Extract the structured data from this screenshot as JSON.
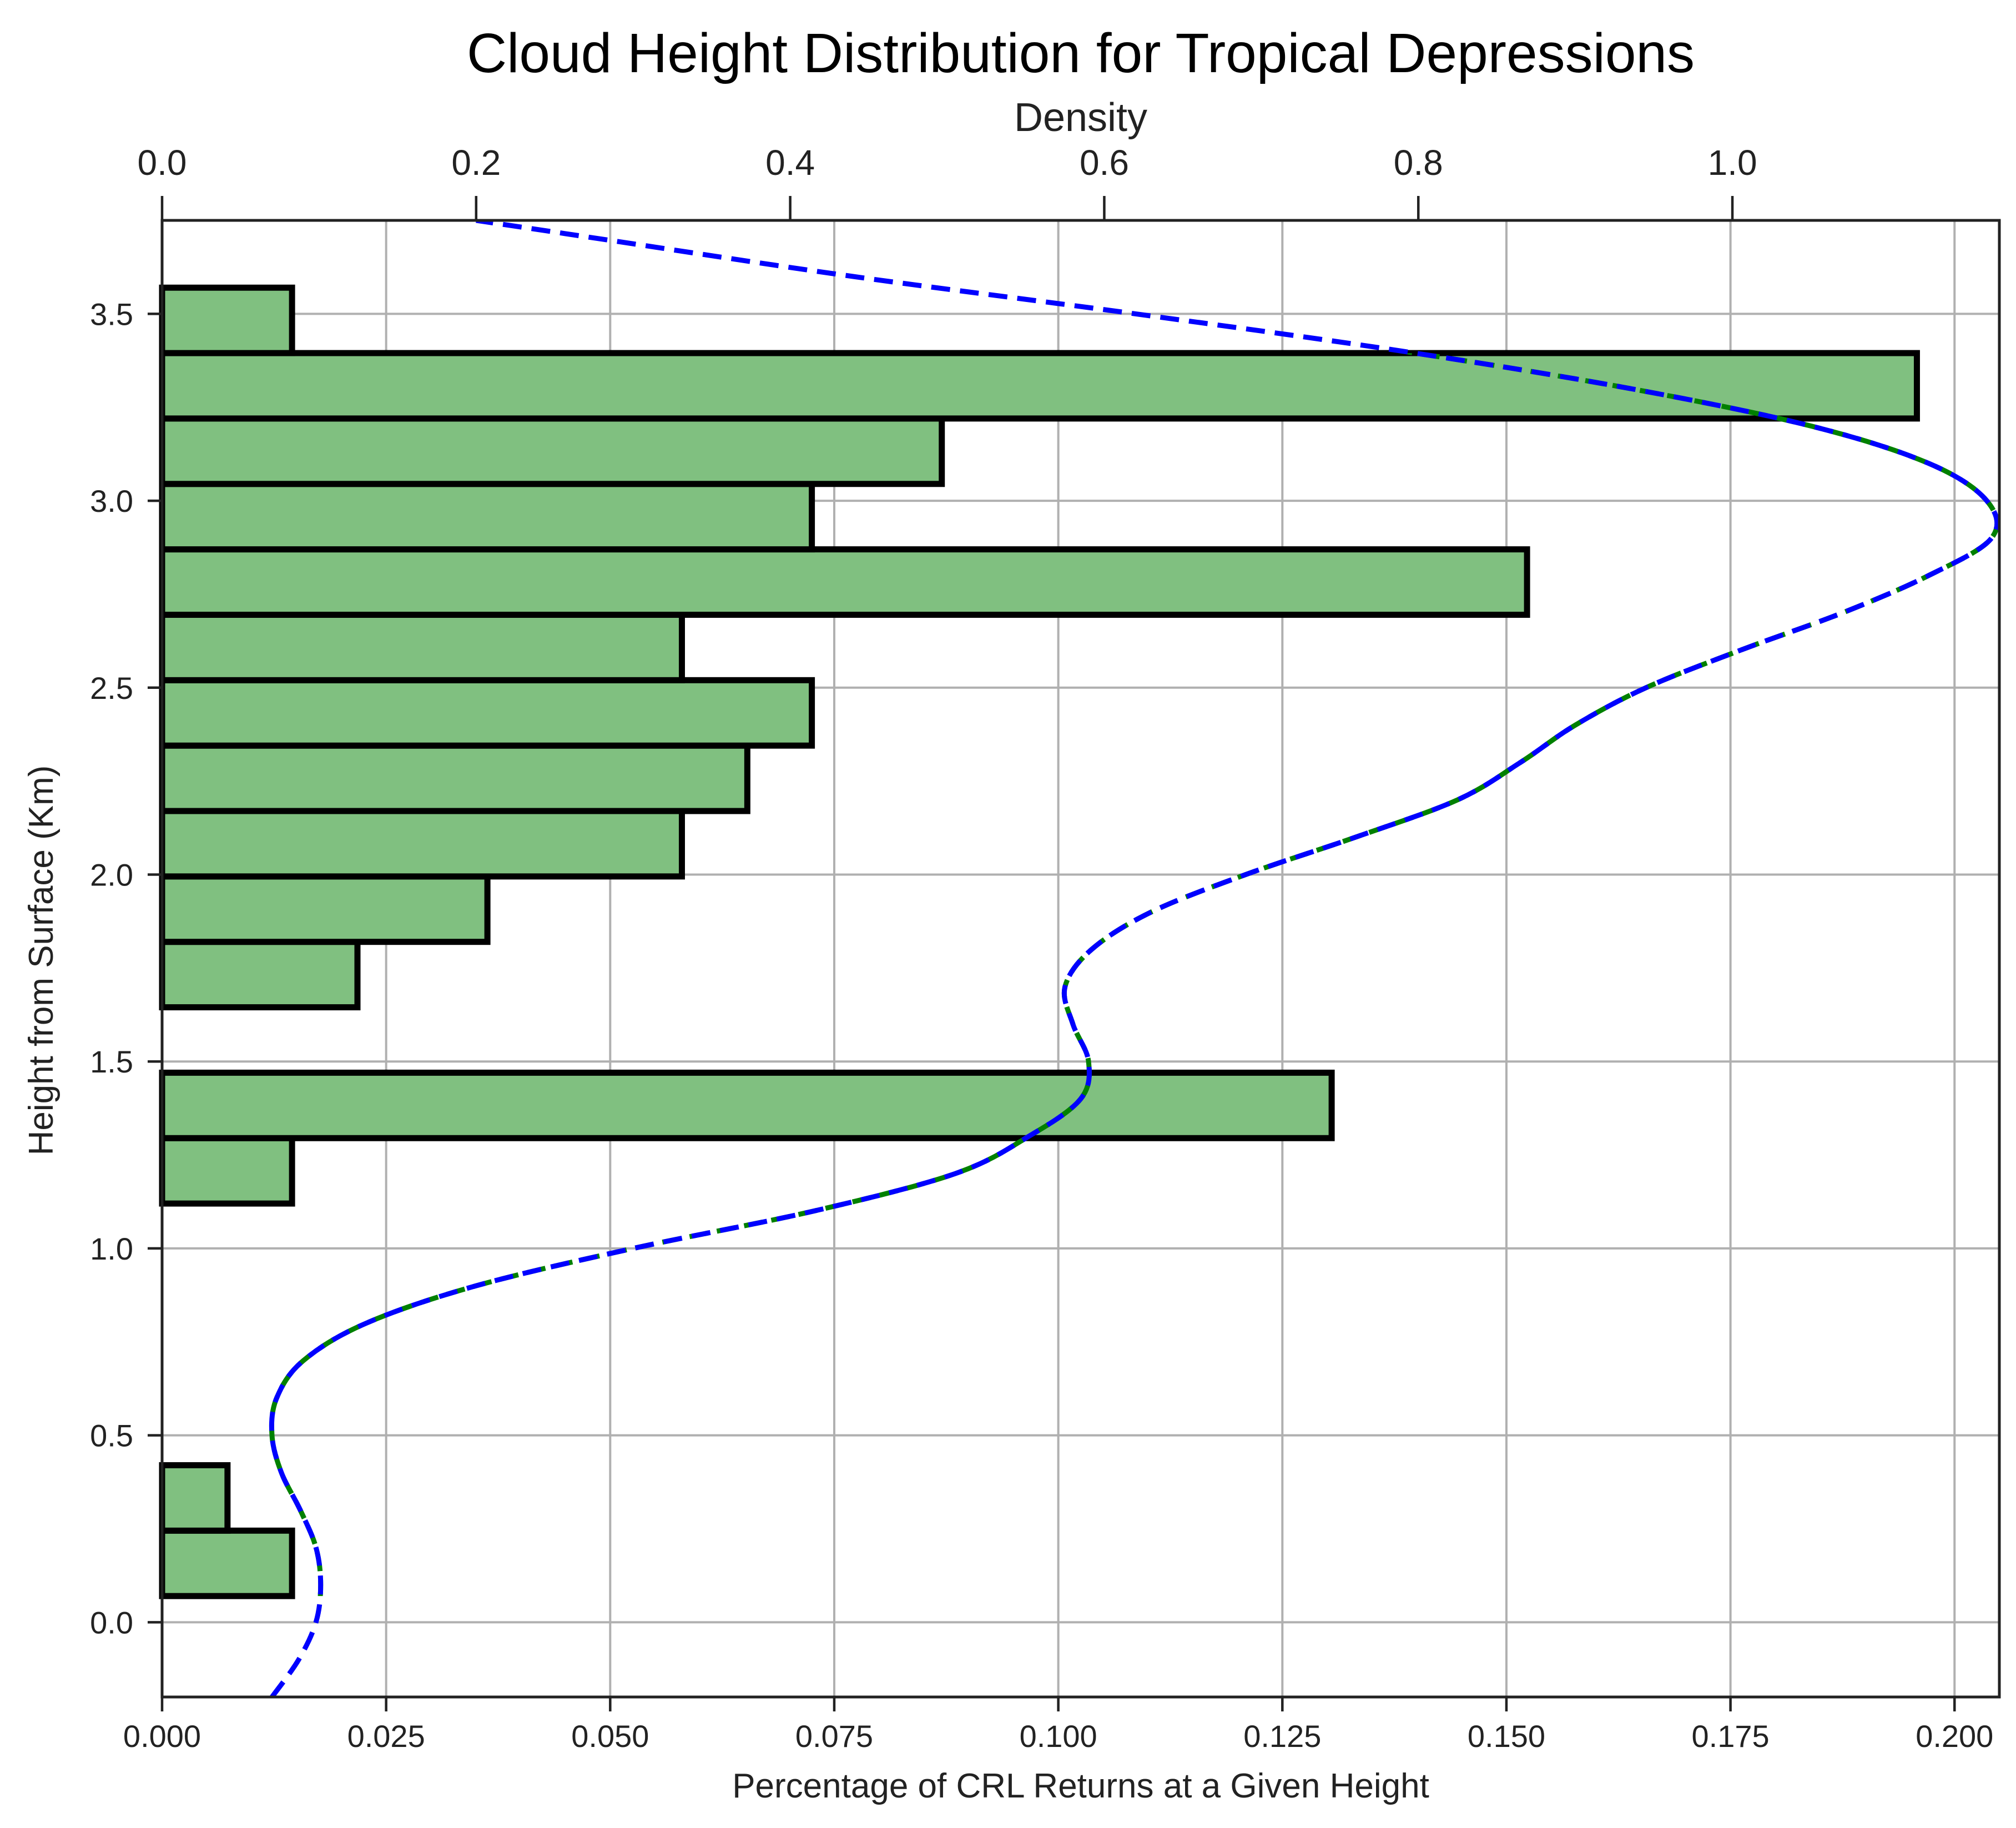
{
  "chart_data": {
    "type": "bar",
    "orientation": "horizontal",
    "title": "Cloud Height Distribution for Tropical Depressions",
    "xlabel": "Percentage of CRL Returns at a Given Height",
    "ylabel": "Height from Surface (Km)",
    "x2label": "Density",
    "xlim": [
      0,
      0.205
    ],
    "ylim": [
      -0.2,
      3.75
    ],
    "x2lim": [
      0,
      1.17
    ],
    "grid": true,
    "bar_color": "#80c080",
    "bar_edge_color": "#000000",
    "kde_color": "#0000ff",
    "kde_under_color": "#008000",
    "x_ticks": [
      "0.000",
      "0.025",
      "0.050",
      "0.075",
      "0.100",
      "0.125",
      "0.150",
      "0.175",
      "0.200"
    ],
    "x_tick_values": [
      0,
      0.025,
      0.05,
      0.075,
      0.1,
      0.125,
      0.15,
      0.175,
      0.2
    ],
    "y_ticks": [
      "0.0",
      "0.5",
      "1.0",
      "1.5",
      "2.0",
      "2.5",
      "3.0",
      "3.5"
    ],
    "y_tick_values": [
      0,
      0.5,
      1.0,
      1.5,
      2.0,
      2.5,
      3.0,
      3.5
    ],
    "x2_ticks": [
      "0.0",
      "0.2",
      "0.4",
      "0.6",
      "0.8",
      "1.0"
    ],
    "x2_tick_values": [
      0,
      0.2,
      0.4,
      0.6,
      0.8,
      1.0
    ],
    "bars": [
      {
        "y0": 0.07,
        "y1": 0.245,
        "value": 0.0145
      },
      {
        "y0": 0.245,
        "y1": 0.42,
        "value": 0.0073
      },
      {
        "y0": 1.12,
        "y1": 1.295,
        "value": 0.0145
      },
      {
        "y0": 1.295,
        "y1": 1.47,
        "value": 0.1305
      },
      {
        "y0": 1.645,
        "y1": 1.82,
        "value": 0.0218
      },
      {
        "y0": 1.82,
        "y1": 1.995,
        "value": 0.0363
      },
      {
        "y0": 1.995,
        "y1": 2.17,
        "value": 0.058
      },
      {
        "y0": 2.17,
        "y1": 2.345,
        "value": 0.0653
      },
      {
        "y0": 2.345,
        "y1": 2.52,
        "value": 0.0725
      },
      {
        "y0": 2.52,
        "y1": 2.695,
        "value": 0.058
      },
      {
        "y0": 2.695,
        "y1": 2.87,
        "value": 0.1523
      },
      {
        "y0": 2.87,
        "y1": 3.045,
        "value": 0.0725
      },
      {
        "y0": 3.045,
        "y1": 3.22,
        "value": 0.087
      },
      {
        "y0": 3.22,
        "y1": 3.395,
        "value": 0.1958
      },
      {
        "y0": 3.395,
        "y1": 3.57,
        "value": 0.0145
      }
    ],
    "kde_density": {
      "y": [
        -0.2,
        -0.1,
        0.0,
        0.1,
        0.2,
        0.3,
        0.4,
        0.5,
        0.6,
        0.7,
        0.8,
        0.9,
        1.0,
        1.1,
        1.2,
        1.3,
        1.4,
        1.5,
        1.6,
        1.7,
        1.8,
        1.9,
        2.0,
        2.1,
        2.2,
        2.3,
        2.4,
        2.5,
        2.6,
        2.7,
        2.8,
        2.9,
        3.0,
        3.1,
        3.2,
        3.3,
        3.4,
        3.5,
        3.6,
        3.7,
        3.75
      ],
      "x": [
        0.07,
        0.087,
        0.098,
        0.101,
        0.098,
        0.088,
        0.076,
        0.07,
        0.073,
        0.09,
        0.13,
        0.2,
        0.3,
        0.415,
        0.505,
        0.552,
        0.585,
        0.59,
        0.58,
        0.575,
        0.592,
        0.63,
        0.69,
        0.76,
        0.825,
        0.865,
        0.9,
        0.945,
        1.005,
        1.07,
        1.125,
        1.165,
        1.162,
        1.125,
        1.05,
        0.935,
        0.79,
        0.62,
        0.44,
        0.28,
        0.2
      ]
    }
  }
}
